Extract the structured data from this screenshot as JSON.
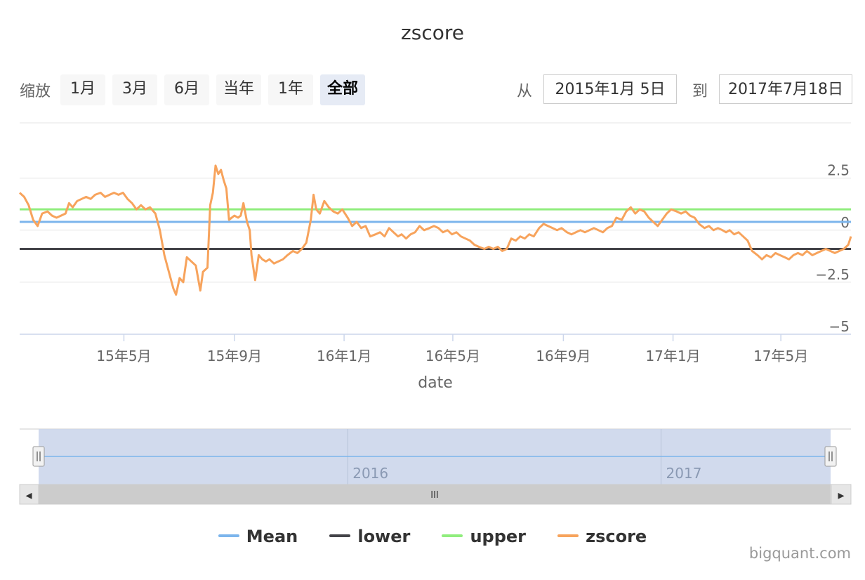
{
  "title": "zscore",
  "range_selector": {
    "zoom_label": "缩放",
    "buttons": [
      {
        "label": "1月",
        "active": false
      },
      {
        "label": "3月",
        "active": false
      },
      {
        "label": "6月",
        "active": false
      },
      {
        "label": "当年",
        "active": false
      },
      {
        "label": "1年",
        "active": false
      },
      {
        "label": "全部",
        "active": true
      }
    ],
    "from_label": "从",
    "from_value": "2015年1月 5日",
    "to_label": "到",
    "to_value": "2017年7月18日"
  },
  "credit": "bigquant.com",
  "colors": {
    "mean": "#7cb5ec",
    "lower": "#434348",
    "upper": "#90ed7d",
    "zscore": "#f7a35c",
    "navigator_mask": "#ccd6eb"
  },
  "chart_data": {
    "type": "line",
    "title": "zscore",
    "xlabel": "date",
    "ylabel": "",
    "x_range": [
      "2015-01-05",
      "2017-07-18"
    ],
    "ylim": [
      -5,
      3.3
    ],
    "y_ticks": [
      2.5,
      0,
      -2.5,
      -5
    ],
    "y_tick_labels": [
      "2.5",
      "0",
      "−2.5",
      "−5"
    ],
    "x_ticks": [
      {
        "date": "2015-05-01",
        "label": "15年5月"
      },
      {
        "date": "2015-09-01",
        "label": "15年9月"
      },
      {
        "date": "2016-01-01",
        "label": "16年1月"
      },
      {
        "date": "2016-05-01",
        "label": "16年5月"
      },
      {
        "date": "2016-09-01",
        "label": "16年9月"
      },
      {
        "date": "2017-01-01",
        "label": "17年1月"
      },
      {
        "date": "2017-05-01",
        "label": "17年5月"
      }
    ],
    "grid": true,
    "legend_position": "bottom",
    "series": [
      {
        "name": "Mean",
        "key": "mean",
        "constant": 0.4
      },
      {
        "name": "lower",
        "key": "lower",
        "constant": -0.9
      },
      {
        "name": "upper",
        "key": "upper",
        "constant": 1.0
      },
      {
        "name": "zscore",
        "key": "zscore",
        "points": [
          [
            "2015-01-05",
            1.8
          ],
          [
            "2015-01-10",
            1.6
          ],
          [
            "2015-01-15",
            1.2
          ],
          [
            "2015-01-20",
            0.5
          ],
          [
            "2015-01-25",
            0.2
          ],
          [
            "2015-01-30",
            0.8
          ],
          [
            "2015-02-05",
            0.9
          ],
          [
            "2015-02-10",
            0.7
          ],
          [
            "2015-02-15",
            0.6
          ],
          [
            "2015-02-20",
            0.7
          ],
          [
            "2015-02-25",
            0.8
          ],
          [
            "2015-03-01",
            1.3
          ],
          [
            "2015-03-05",
            1.1
          ],
          [
            "2015-03-10",
            1.4
          ],
          [
            "2015-03-15",
            1.5
          ],
          [
            "2015-03-20",
            1.6
          ],
          [
            "2015-03-25",
            1.5
          ],
          [
            "2015-03-30",
            1.7
          ],
          [
            "2015-04-05",
            1.8
          ],
          [
            "2015-04-10",
            1.6
          ],
          [
            "2015-04-15",
            1.7
          ],
          [
            "2015-04-20",
            1.8
          ],
          [
            "2015-04-25",
            1.7
          ],
          [
            "2015-04-30",
            1.8
          ],
          [
            "2015-05-05",
            1.5
          ],
          [
            "2015-05-10",
            1.3
          ],
          [
            "2015-05-15",
            1.0
          ],
          [
            "2015-05-20",
            1.2
          ],
          [
            "2015-05-25",
            1.0
          ],
          [
            "2015-05-30",
            1.1
          ],
          [
            "2015-06-05",
            0.8
          ],
          [
            "2015-06-10",
            0.0
          ],
          [
            "2015-06-15",
            -1.2
          ],
          [
            "2015-06-20",
            -2.0
          ],
          [
            "2015-06-25",
            -2.8
          ],
          [
            "2015-06-28",
            -3.1
          ],
          [
            "2015-07-02",
            -2.3
          ],
          [
            "2015-07-06",
            -2.5
          ],
          [
            "2015-07-10",
            -1.3
          ],
          [
            "2015-07-15",
            -1.5
          ],
          [
            "2015-07-20",
            -1.7
          ],
          [
            "2015-07-25",
            -2.9
          ],
          [
            "2015-07-28",
            -2.0
          ],
          [
            "2015-08-02",
            -1.8
          ],
          [
            "2015-08-05",
            1.2
          ],
          [
            "2015-08-08",
            1.8
          ],
          [
            "2015-08-11",
            3.1
          ],
          [
            "2015-08-14",
            2.7
          ],
          [
            "2015-08-17",
            2.9
          ],
          [
            "2015-08-20",
            2.4
          ],
          [
            "2015-08-23",
            2.0
          ],
          [
            "2015-08-26",
            0.5
          ],
          [
            "2015-08-29",
            0.6
          ],
          [
            "2015-09-01",
            0.7
          ],
          [
            "2015-09-05",
            0.6
          ],
          [
            "2015-09-08",
            0.7
          ],
          [
            "2015-09-11",
            1.3
          ],
          [
            "2015-09-15",
            0.4
          ],
          [
            "2015-09-18",
            0.0
          ],
          [
            "2015-09-20",
            -1.2
          ],
          [
            "2015-09-24",
            -2.4
          ],
          [
            "2015-09-28",
            -1.2
          ],
          [
            "2015-10-02",
            -1.4
          ],
          [
            "2015-10-06",
            -1.5
          ],
          [
            "2015-10-10",
            -1.4
          ],
          [
            "2015-10-15",
            -1.6
          ],
          [
            "2015-10-20",
            -1.5
          ],
          [
            "2015-10-25",
            -1.4
          ],
          [
            "2015-10-30",
            -1.2
          ],
          [
            "2015-11-05",
            -1.0
          ],
          [
            "2015-11-10",
            -1.1
          ],
          [
            "2015-11-15",
            -0.9
          ],
          [
            "2015-11-20",
            -0.6
          ],
          [
            "2015-11-25",
            0.5
          ],
          [
            "2015-11-28",
            1.7
          ],
          [
            "2015-12-01",
            1.0
          ],
          [
            "2015-12-05",
            0.8
          ],
          [
            "2015-12-10",
            1.4
          ],
          [
            "2015-12-15",
            1.1
          ],
          [
            "2015-12-20",
            0.9
          ],
          [
            "2015-12-25",
            0.8
          ],
          [
            "2015-12-30",
            1.0
          ],
          [
            "2016-01-05",
            0.6
          ],
          [
            "2016-01-10",
            0.2
          ],
          [
            "2016-01-15",
            0.4
          ],
          [
            "2016-01-20",
            0.1
          ],
          [
            "2016-01-25",
            0.2
          ],
          [
            "2016-01-30",
            -0.3
          ],
          [
            "2016-02-05",
            -0.2
          ],
          [
            "2016-02-10",
            -0.1
          ],
          [
            "2016-02-15",
            -0.3
          ],
          [
            "2016-02-20",
            0.1
          ],
          [
            "2016-02-25",
            -0.1
          ],
          [
            "2016-03-01",
            -0.3
          ],
          [
            "2016-03-05",
            -0.2
          ],
          [
            "2016-03-10",
            -0.4
          ],
          [
            "2016-03-15",
            -0.2
          ],
          [
            "2016-03-20",
            -0.1
          ],
          [
            "2016-03-25",
            0.2
          ],
          [
            "2016-03-30",
            0.0
          ],
          [
            "2016-04-05",
            0.1
          ],
          [
            "2016-04-10",
            0.2
          ],
          [
            "2016-04-15",
            0.1
          ],
          [
            "2016-04-20",
            -0.1
          ],
          [
            "2016-04-25",
            0.0
          ],
          [
            "2016-04-30",
            -0.2
          ],
          [
            "2016-05-05",
            -0.1
          ],
          [
            "2016-05-10",
            -0.3
          ],
          [
            "2016-05-15",
            -0.4
          ],
          [
            "2016-05-20",
            -0.5
          ],
          [
            "2016-05-25",
            -0.7
          ],
          [
            "2016-05-30",
            -0.8
          ],
          [
            "2016-06-05",
            -0.9
          ],
          [
            "2016-06-10",
            -0.8
          ],
          [
            "2016-06-15",
            -0.9
          ],
          [
            "2016-06-20",
            -0.8
          ],
          [
            "2016-06-25",
            -1.0
          ],
          [
            "2016-06-30",
            -0.9
          ],
          [
            "2016-07-05",
            -0.4
          ],
          [
            "2016-07-10",
            -0.5
          ],
          [
            "2016-07-15",
            -0.3
          ],
          [
            "2016-07-20",
            -0.4
          ],
          [
            "2016-07-25",
            -0.2
          ],
          [
            "2016-07-30",
            -0.3
          ],
          [
            "2016-08-05",
            0.1
          ],
          [
            "2016-08-10",
            0.3
          ],
          [
            "2016-08-15",
            0.2
          ],
          [
            "2016-08-20",
            0.1
          ],
          [
            "2016-08-25",
            0.0
          ],
          [
            "2016-08-30",
            0.1
          ],
          [
            "2016-09-05",
            -0.1
          ],
          [
            "2016-09-10",
            -0.2
          ],
          [
            "2016-09-15",
            -0.1
          ],
          [
            "2016-09-20",
            0.0
          ],
          [
            "2016-09-25",
            -0.1
          ],
          [
            "2016-09-30",
            0.0
          ],
          [
            "2016-10-05",
            0.1
          ],
          [
            "2016-10-10",
            0.0
          ],
          [
            "2016-10-15",
            -0.1
          ],
          [
            "2016-10-20",
            0.1
          ],
          [
            "2016-10-25",
            0.2
          ],
          [
            "2016-10-30",
            0.6
          ],
          [
            "2016-11-05",
            0.5
          ],
          [
            "2016-11-10",
            0.9
          ],
          [
            "2016-11-15",
            1.1
          ],
          [
            "2016-11-20",
            0.8
          ],
          [
            "2016-11-25",
            1.0
          ],
          [
            "2016-11-30",
            0.9
          ],
          [
            "2016-12-05",
            0.6
          ],
          [
            "2016-12-10",
            0.4
          ],
          [
            "2016-12-15",
            0.2
          ],
          [
            "2016-12-20",
            0.5
          ],
          [
            "2016-12-25",
            0.8
          ],
          [
            "2016-12-30",
            1.0
          ],
          [
            "2017-01-05",
            0.9
          ],
          [
            "2017-01-10",
            0.8
          ],
          [
            "2017-01-15",
            0.9
          ],
          [
            "2017-01-20",
            0.7
          ],
          [
            "2017-01-25",
            0.6
          ],
          [
            "2017-01-30",
            0.3
          ],
          [
            "2017-02-05",
            0.1
          ],
          [
            "2017-02-10",
            0.2
          ],
          [
            "2017-02-15",
            0.0
          ],
          [
            "2017-02-20",
            0.1
          ],
          [
            "2017-02-25",
            0.0
          ],
          [
            "2017-03-01",
            -0.1
          ],
          [
            "2017-03-05",
            0.0
          ],
          [
            "2017-03-10",
            -0.2
          ],
          [
            "2017-03-15",
            -0.1
          ],
          [
            "2017-03-20",
            -0.3
          ],
          [
            "2017-03-25",
            -0.5
          ],
          [
            "2017-03-30",
            -1.0
          ],
          [
            "2017-04-05",
            -1.2
          ],
          [
            "2017-04-10",
            -1.4
          ],
          [
            "2017-04-15",
            -1.2
          ],
          [
            "2017-04-20",
            -1.3
          ],
          [
            "2017-04-25",
            -1.1
          ],
          [
            "2017-04-30",
            -1.2
          ],
          [
            "2017-05-05",
            -1.3
          ],
          [
            "2017-05-10",
            -1.4
          ],
          [
            "2017-05-15",
            -1.2
          ],
          [
            "2017-05-20",
            -1.1
          ],
          [
            "2017-05-25",
            -1.2
          ],
          [
            "2017-05-30",
            -1.0
          ],
          [
            "2017-06-05",
            -1.2
          ],
          [
            "2017-06-10",
            -1.1
          ],
          [
            "2017-06-15",
            -1.0
          ],
          [
            "2017-06-20",
            -0.9
          ],
          [
            "2017-06-25",
            -1.0
          ],
          [
            "2017-06-30",
            -1.1
          ],
          [
            "2017-07-05",
            -1.0
          ],
          [
            "2017-07-10",
            -0.9
          ],
          [
            "2017-07-15",
            -0.7
          ],
          [
            "2017-07-18",
            -0.3
          ]
        ]
      }
    ]
  },
  "navigator": {
    "labels": [
      "2016",
      "2017"
    ],
    "label_dates": [
      "2016-01-01",
      "2017-01-01"
    ],
    "scroll_left_label": "◂",
    "scroll_right_label": "▸",
    "scroll_grip_label": "III"
  }
}
